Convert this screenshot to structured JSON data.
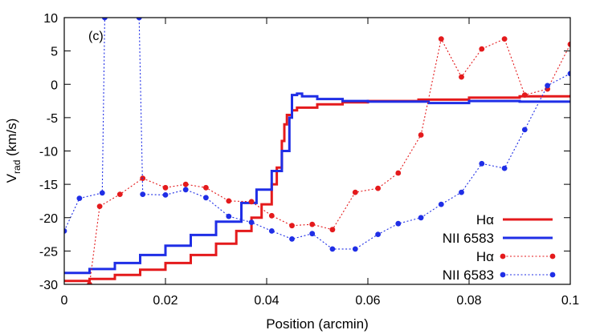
{
  "chart_data": {
    "type": "line",
    "panel_label": "(c)",
    "xlabel": "Position (arcmin)",
    "ylabel_main": "V",
    "ylabel_sub": "rad",
    "ylabel_unit": " (km/s)",
    "xlim": [
      0,
      0.1
    ],
    "ylim": [
      -30,
      10
    ],
    "x_ticks": [
      0,
      0.02,
      0.04,
      0.06,
      0.08,
      0.1
    ],
    "x_tick_labels": [
      "0",
      "0.02",
      "0.04",
      "0.06",
      "0.08",
      "0.1"
    ],
    "y_ticks": [
      -30,
      -25,
      -20,
      -15,
      -10,
      -5,
      0,
      5,
      10
    ],
    "y_tick_labels": [
      "-30",
      "-25",
      "-20",
      "-15",
      "-10",
      "-5",
      "0",
      "5",
      "10"
    ],
    "grid": false,
    "legend_position": "bottom-right",
    "series": [
      {
        "name": "Hα",
        "style": "solid",
        "color": "#e41a1c",
        "x": [
          0,
          0.005,
          0.01,
          0.015,
          0.02,
          0.025,
          0.03,
          0.034,
          0.037,
          0.039,
          0.041,
          0.042,
          0.043,
          0.0435,
          0.044,
          0.045,
          0.046,
          0.05,
          0.055,
          0.06,
          0.07,
          0.08,
          0.09,
          0.1
        ],
        "y": [
          -29.5,
          -29.2,
          -28.6,
          -27.8,
          -26.8,
          -25.6,
          -23.9,
          -22.0,
          -20.0,
          -18.0,
          -15.0,
          -12.5,
          -8.5,
          -6.0,
          -4.6,
          -3.9,
          -3.5,
          -3.0,
          -2.7,
          -2.5,
          -2.3,
          -2.0,
          -1.8,
          -1.6
        ]
      },
      {
        "name": "NII 6583",
        "style": "solid",
        "color": "#1f2ee6",
        "x": [
          0,
          0.005,
          0.01,
          0.015,
          0.02,
          0.025,
          0.03,
          0.035,
          0.038,
          0.041,
          0.043,
          0.0445,
          0.045,
          0.046,
          0.047,
          0.05,
          0.055,
          0.06,
          0.07,
          0.072,
          0.08,
          0.09,
          0.1
        ],
        "y": [
          -28.3,
          -27.7,
          -26.8,
          -25.6,
          -24.2,
          -22.6,
          -20.6,
          -17.8,
          -15.8,
          -13.0,
          -10.0,
          -5.0,
          -1.6,
          -1.4,
          -1.8,
          -2.2,
          -2.5,
          -2.6,
          -2.6,
          -2.8,
          -2.5,
          -2.6,
          -2.6
        ]
      },
      {
        "name": "Hα",
        "style": "dotted-points",
        "color": "#e41a1c",
        "x": [
          0.005,
          0.007,
          0.011,
          0.0155,
          0.02,
          0.024,
          0.028,
          0.0325,
          0.037,
          0.041,
          0.045,
          0.049,
          0.053,
          0.0575,
          0.062,
          0.066,
          0.0705,
          0.0745,
          0.0785,
          0.0825,
          0.087,
          0.091,
          0.0955,
          0.1
        ],
        "y": [
          -30,
          -18.3,
          -16.5,
          -14.1,
          -15.5,
          -15.0,
          -15.5,
          -17.5,
          -17.6,
          -19.7,
          -21.2,
          -21.0,
          -21.8,
          -16.2,
          -15.6,
          -13.3,
          -7.6,
          6.8,
          1.1,
          5.3,
          6.8,
          -1.6,
          -0.7,
          6.0
        ]
      },
      {
        "name": "NII 6583",
        "style": "dotted-points",
        "color": "#1f2ee6",
        "x": [
          0,
          0.003,
          0.0075,
          0.008,
          0.0148,
          0.0155,
          0.02,
          0.024,
          0.028,
          0.0325,
          0.037,
          0.041,
          0.045,
          0.049,
          0.053,
          0.0575,
          0.062,
          0.066,
          0.0705,
          0.0745,
          0.0785,
          0.0825,
          0.087,
          0.091,
          0.0955,
          0.1
        ],
        "y": [
          -22.0,
          -17.1,
          -16.3,
          10,
          10,
          -16.5,
          -16.6,
          -15.8,
          -17.0,
          -19.8,
          -20.7,
          -22.0,
          -23.2,
          -22.4,
          -24.7,
          -24.7,
          -22.5,
          -20.9,
          -20.0,
          -18.0,
          -16.2,
          -11.9,
          -12.6,
          -6.8,
          -0.2,
          1.6
        ]
      }
    ]
  }
}
